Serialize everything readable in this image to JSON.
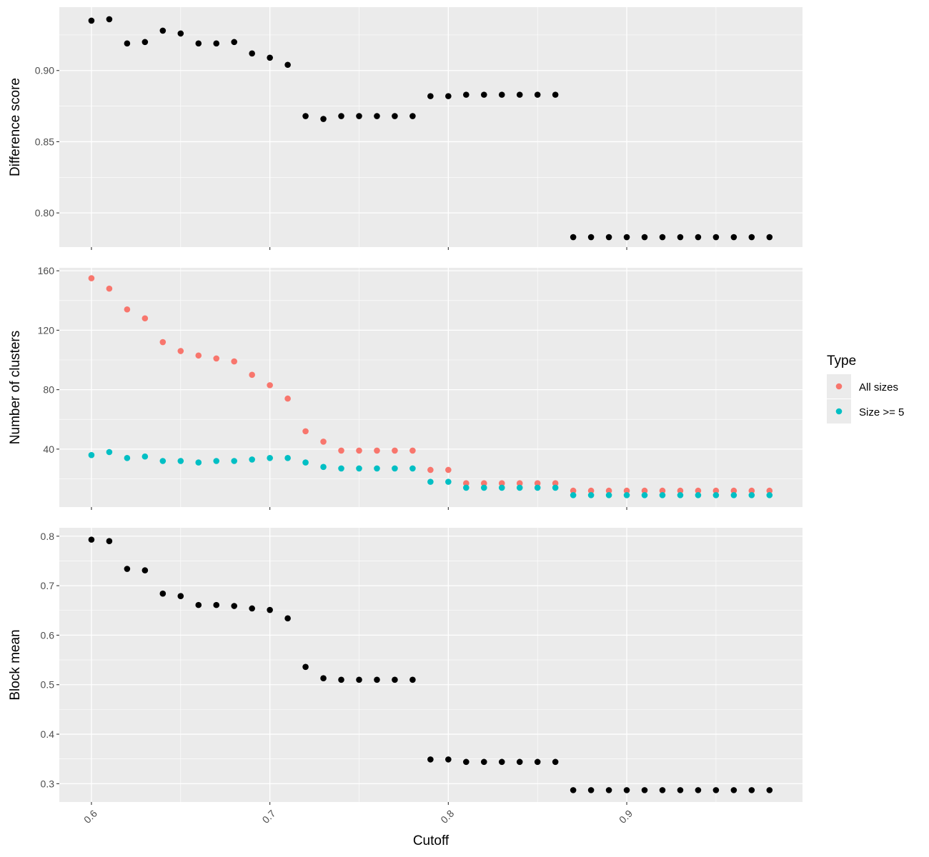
{
  "figure": {
    "xlabel": "Cutoff",
    "x_ticks": [
      0.6,
      0.7,
      0.8,
      0.9
    ],
    "x_tick_labels": [
      "0.6",
      "0.7",
      "0.8",
      "0.9"
    ],
    "xlim": [
      0.582,
      0.9985
    ],
    "panel_background": "#ebebeb",
    "grid_color": "#ffffff"
  },
  "legend": {
    "title": "Type",
    "items": [
      {
        "label": "All sizes",
        "color": "#f8766d"
      },
      {
        "label": "Size >= 5",
        "color": "#00bfc4"
      }
    ]
  },
  "chart_data": [
    {
      "type": "scatter",
      "ylabel": "Difference score",
      "ylim": [
        0.776,
        0.9445
      ],
      "y_ticks": [
        0.8,
        0.85,
        0.9
      ],
      "y_tick_labels": [
        "0.80",
        "0.85",
        "0.90"
      ],
      "grid": true,
      "series": [
        {
          "color": "#000000",
          "x": [
            0.6,
            0.61,
            0.62,
            0.63,
            0.64,
            0.65,
            0.66,
            0.67,
            0.68,
            0.69,
            0.7,
            0.71,
            0.72,
            0.73,
            0.74,
            0.75,
            0.76,
            0.77,
            0.78,
            0.79,
            0.8,
            0.81,
            0.82,
            0.83,
            0.84,
            0.85,
            0.86,
            0.87,
            0.88,
            0.89,
            0.9,
            0.91,
            0.92,
            0.93,
            0.94,
            0.95,
            0.96,
            0.97,
            0.98
          ],
          "y": [
            0.935,
            0.936,
            0.919,
            0.92,
            0.928,
            0.926,
            0.919,
            0.919,
            0.92,
            0.912,
            0.909,
            0.904,
            0.868,
            0.866,
            0.868,
            0.868,
            0.868,
            0.868,
            0.868,
            0.882,
            0.882,
            0.883,
            0.883,
            0.883,
            0.883,
            0.883,
            0.883,
            0.783,
            0.783,
            0.783,
            0.783,
            0.783,
            0.783,
            0.783,
            0.783,
            0.783,
            0.783,
            0.783,
            0.783
          ]
        }
      ]
    },
    {
      "type": "scatter",
      "ylabel": "Number of clusters",
      "ylim": [
        1,
        162
      ],
      "y_ticks": [
        40,
        80,
        120,
        160
      ],
      "y_tick_labels": [
        "40",
        "80",
        "120",
        "160"
      ],
      "grid": true,
      "legend": "right",
      "series": [
        {
          "name": "All sizes",
          "color": "#f8766d",
          "x": [
            0.6,
            0.61,
            0.62,
            0.63,
            0.64,
            0.65,
            0.66,
            0.67,
            0.68,
            0.69,
            0.7,
            0.71,
            0.72,
            0.73,
            0.74,
            0.75,
            0.76,
            0.77,
            0.78,
            0.79,
            0.8,
            0.81,
            0.82,
            0.83,
            0.84,
            0.85,
            0.86,
            0.87,
            0.88,
            0.89,
            0.9,
            0.91,
            0.92,
            0.93,
            0.94,
            0.95,
            0.96,
            0.97,
            0.98
          ],
          "y": [
            155,
            148,
            134,
            128,
            112,
            106,
            103,
            101,
            99,
            90,
            83,
            74,
            52,
            45,
            39,
            39,
            39,
            39,
            39,
            26,
            26,
            17,
            17,
            17,
            17,
            17,
            17,
            12,
            12,
            12,
            12,
            12,
            12,
            12,
            12,
            12,
            12,
            12,
            12
          ]
        },
        {
          "name": "Size >= 5",
          "color": "#00bfc4",
          "x": [
            0.6,
            0.61,
            0.62,
            0.63,
            0.64,
            0.65,
            0.66,
            0.67,
            0.68,
            0.69,
            0.7,
            0.71,
            0.72,
            0.73,
            0.74,
            0.75,
            0.76,
            0.77,
            0.78,
            0.79,
            0.8,
            0.81,
            0.82,
            0.83,
            0.84,
            0.85,
            0.86,
            0.87,
            0.88,
            0.89,
            0.9,
            0.91,
            0.92,
            0.93,
            0.94,
            0.95,
            0.96,
            0.97,
            0.98
          ],
          "y": [
            36,
            38,
            34,
            35,
            32,
            32,
            31,
            32,
            32,
            33,
            34,
            34,
            31,
            28,
            27,
            27,
            27,
            27,
            27,
            18,
            18,
            14,
            14,
            14,
            14,
            14,
            14,
            9,
            9,
            9,
            9,
            9,
            9,
            9,
            9,
            9,
            9,
            9,
            9
          ]
        }
      ]
    },
    {
      "type": "scatter",
      "ylabel": "Block mean",
      "ylim": [
        0.263,
        0.817
      ],
      "y_ticks": [
        0.3,
        0.4,
        0.5,
        0.6,
        0.7,
        0.8
      ],
      "y_tick_labels": [
        "0.3",
        "0.4",
        "0.5",
        "0.6",
        "0.7",
        "0.8"
      ],
      "grid": true,
      "series": [
        {
          "color": "#000000",
          "x": [
            0.6,
            0.61,
            0.62,
            0.63,
            0.64,
            0.65,
            0.66,
            0.67,
            0.68,
            0.69,
            0.7,
            0.71,
            0.72,
            0.73,
            0.74,
            0.75,
            0.76,
            0.77,
            0.78,
            0.79,
            0.8,
            0.81,
            0.82,
            0.83,
            0.84,
            0.85,
            0.86,
            0.87,
            0.88,
            0.89,
            0.9,
            0.91,
            0.92,
            0.93,
            0.94,
            0.95,
            0.96,
            0.97,
            0.98
          ],
          "y": [
            0.793,
            0.79,
            0.734,
            0.731,
            0.684,
            0.679,
            0.661,
            0.661,
            0.659,
            0.654,
            0.651,
            0.634,
            0.536,
            0.513,
            0.51,
            0.51,
            0.51,
            0.51,
            0.51,
            0.349,
            0.349,
            0.344,
            0.344,
            0.344,
            0.344,
            0.344,
            0.344,
            0.287,
            0.287,
            0.287,
            0.287,
            0.287,
            0.287,
            0.287,
            0.287,
            0.287,
            0.287,
            0.287,
            0.287
          ]
        }
      ]
    }
  ]
}
